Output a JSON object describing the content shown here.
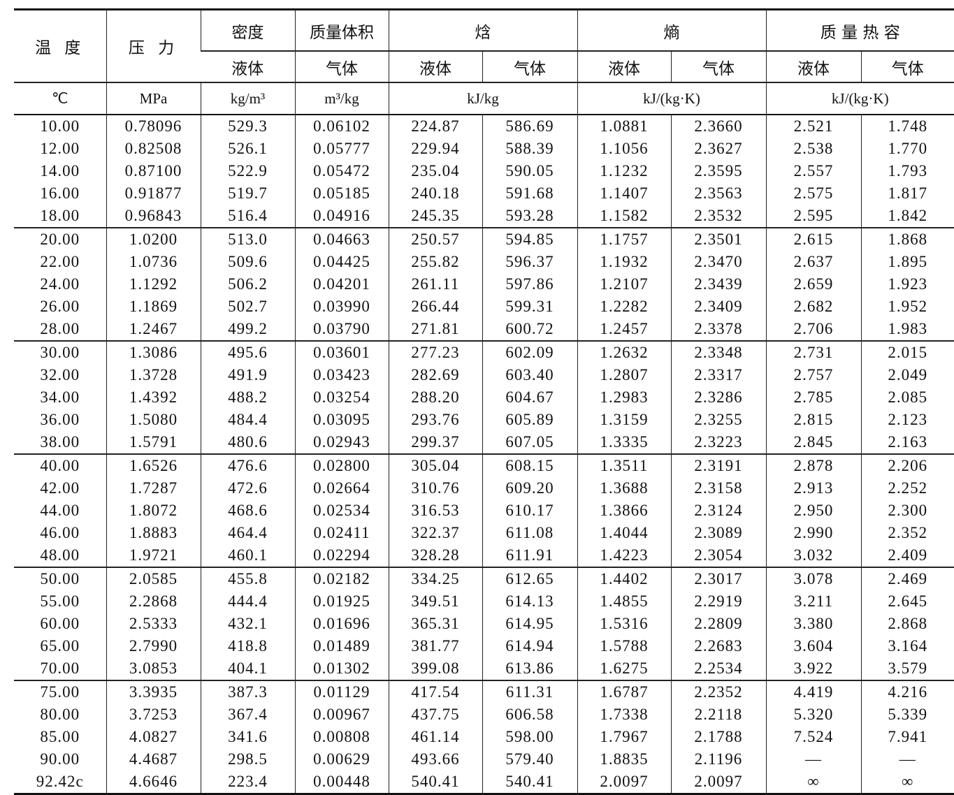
{
  "header": {
    "temperature": "温 度",
    "pressure": "压 力",
    "density": "密度",
    "specific_volume": "质量体积",
    "enthalpy": "焓",
    "entropy": "熵",
    "heat_capacity": "质 量 热 容",
    "liquid": "液体",
    "gas": "气体",
    "units": {
      "temperature": "℃",
      "pressure": "MPa",
      "density": "kg/m³",
      "specific_volume": "m³/kg",
      "enthalpy": "kJ/kg",
      "entropy": "kJ/(kg·K)",
      "heat_capacity": "kJ/(kg·K)"
    }
  },
  "rows": [
    [
      "10.00",
      "0.78096",
      "529.3",
      "0.06102",
      "224.87",
      "586.69",
      "1.0881",
      "2.3660",
      "2.521",
      "1.748"
    ],
    [
      "12.00",
      "0.82508",
      "526.1",
      "0.05777",
      "229.94",
      "588.39",
      "1.1056",
      "2.3627",
      "2.538",
      "1.770"
    ],
    [
      "14.00",
      "0.87100",
      "522.9",
      "0.05472",
      "235.04",
      "590.05",
      "1.1232",
      "2.3595",
      "2.557",
      "1.793"
    ],
    [
      "16.00",
      "0.91877",
      "519.7",
      "0.05185",
      "240.18",
      "591.68",
      "1.1407",
      "2.3563",
      "2.575",
      "1.817"
    ],
    [
      "18.00",
      "0.96843",
      "516.4",
      "0.04916",
      "245.35",
      "593.28",
      "1.1582",
      "2.3532",
      "2.595",
      "1.842"
    ],
    [
      "20.00",
      "1.0200",
      "513.0",
      "0.04663",
      "250.57",
      "594.85",
      "1.1757",
      "2.3501",
      "2.615",
      "1.868"
    ],
    [
      "22.00",
      "1.0736",
      "509.6",
      "0.04425",
      "255.82",
      "596.37",
      "1.1932",
      "2.3470",
      "2.637",
      "1.895"
    ],
    [
      "24.00",
      "1.1292",
      "506.2",
      "0.04201",
      "261.11",
      "597.86",
      "1.2107",
      "2.3439",
      "2.659",
      "1.923"
    ],
    [
      "26.00",
      "1.1869",
      "502.7",
      "0.03990",
      "266.44",
      "599.31",
      "1.2282",
      "2.3409",
      "2.682",
      "1.952"
    ],
    [
      "28.00",
      "1.2467",
      "499.2",
      "0.03790",
      "271.81",
      "600.72",
      "1.2457",
      "2.3378",
      "2.706",
      "1.983"
    ],
    [
      "30.00",
      "1.3086",
      "495.6",
      "0.03601",
      "277.23",
      "602.09",
      "1.2632",
      "2.3348",
      "2.731",
      "2.015"
    ],
    [
      "32.00",
      "1.3728",
      "491.9",
      "0.03423",
      "282.69",
      "603.40",
      "1.2807",
      "2.3317",
      "2.757",
      "2.049"
    ],
    [
      "34.00",
      "1.4392",
      "488.2",
      "0.03254",
      "288.20",
      "604.67",
      "1.2983",
      "2.3286",
      "2.785",
      "2.085"
    ],
    [
      "36.00",
      "1.5080",
      "484.4",
      "0.03095",
      "293.76",
      "605.89",
      "1.3159",
      "2.3255",
      "2.815",
      "2.123"
    ],
    [
      "38.00",
      "1.5791",
      "480.6",
      "0.02943",
      "299.37",
      "607.05",
      "1.3335",
      "2.3223",
      "2.845",
      "2.163"
    ],
    [
      "40.00",
      "1.6526",
      "476.6",
      "0.02800",
      "305.04",
      "608.15",
      "1.3511",
      "2.3191",
      "2.878",
      "2.206"
    ],
    [
      "42.00",
      "1.7287",
      "472.6",
      "0.02664",
      "310.76",
      "609.20",
      "1.3688",
      "2.3158",
      "2.913",
      "2.252"
    ],
    [
      "44.00",
      "1.8072",
      "468.6",
      "0.02534",
      "316.53",
      "610.17",
      "1.3866",
      "2.3124",
      "2.950",
      "2.300"
    ],
    [
      "46.00",
      "1.8883",
      "464.4",
      "0.02411",
      "322.37",
      "611.08",
      "1.4044",
      "2.3089",
      "2.990",
      "2.352"
    ],
    [
      "48.00",
      "1.9721",
      "460.1",
      "0.02294",
      "328.28",
      "611.91",
      "1.4223",
      "2.3054",
      "3.032",
      "2.409"
    ],
    [
      "50.00",
      "2.0585",
      "455.8",
      "0.02182",
      "334.25",
      "612.65",
      "1.4402",
      "2.3017",
      "3.078",
      "2.469"
    ],
    [
      "55.00",
      "2.2868",
      "444.4",
      "0.01925",
      "349.51",
      "614.13",
      "1.4855",
      "2.2919",
      "3.211",
      "2.645"
    ],
    [
      "60.00",
      "2.5333",
      "432.1",
      "0.01696",
      "365.31",
      "614.95",
      "1.5316",
      "2.2809",
      "3.380",
      "2.868"
    ],
    [
      "65.00",
      "2.7990",
      "418.8",
      "0.01489",
      "381.77",
      "614.94",
      "1.5788",
      "2.2683",
      "3.604",
      "3.164"
    ],
    [
      "70.00",
      "3.0853",
      "404.1",
      "0.01302",
      "399.08",
      "613.86",
      "1.6275",
      "2.2534",
      "3.922",
      "3.579"
    ],
    [
      "75.00",
      "3.3935",
      "387.3",
      "0.01129",
      "417.54",
      "611.31",
      "1.6787",
      "2.2352",
      "4.419",
      "4.216"
    ],
    [
      "80.00",
      "3.7253",
      "367.4",
      "0.00967",
      "437.75",
      "606.58",
      "1.7338",
      "2.2118",
      "5.320",
      "5.339"
    ],
    [
      "85.00",
      "4.0827",
      "341.6",
      "0.00808",
      "461.14",
      "598.00",
      "1.7967",
      "2.1788",
      "7.524",
      "7.941"
    ],
    [
      "90.00",
      "4.4687",
      "298.5",
      "0.00629",
      "493.66",
      "579.40",
      "1.8835",
      "2.1196",
      "—",
      "—"
    ],
    [
      "92.42c",
      "4.6646",
      "223.4",
      "0.00448",
      "540.41",
      "540.41",
      "2.0097",
      "2.0097",
      "∞",
      "∞"
    ]
  ]
}
